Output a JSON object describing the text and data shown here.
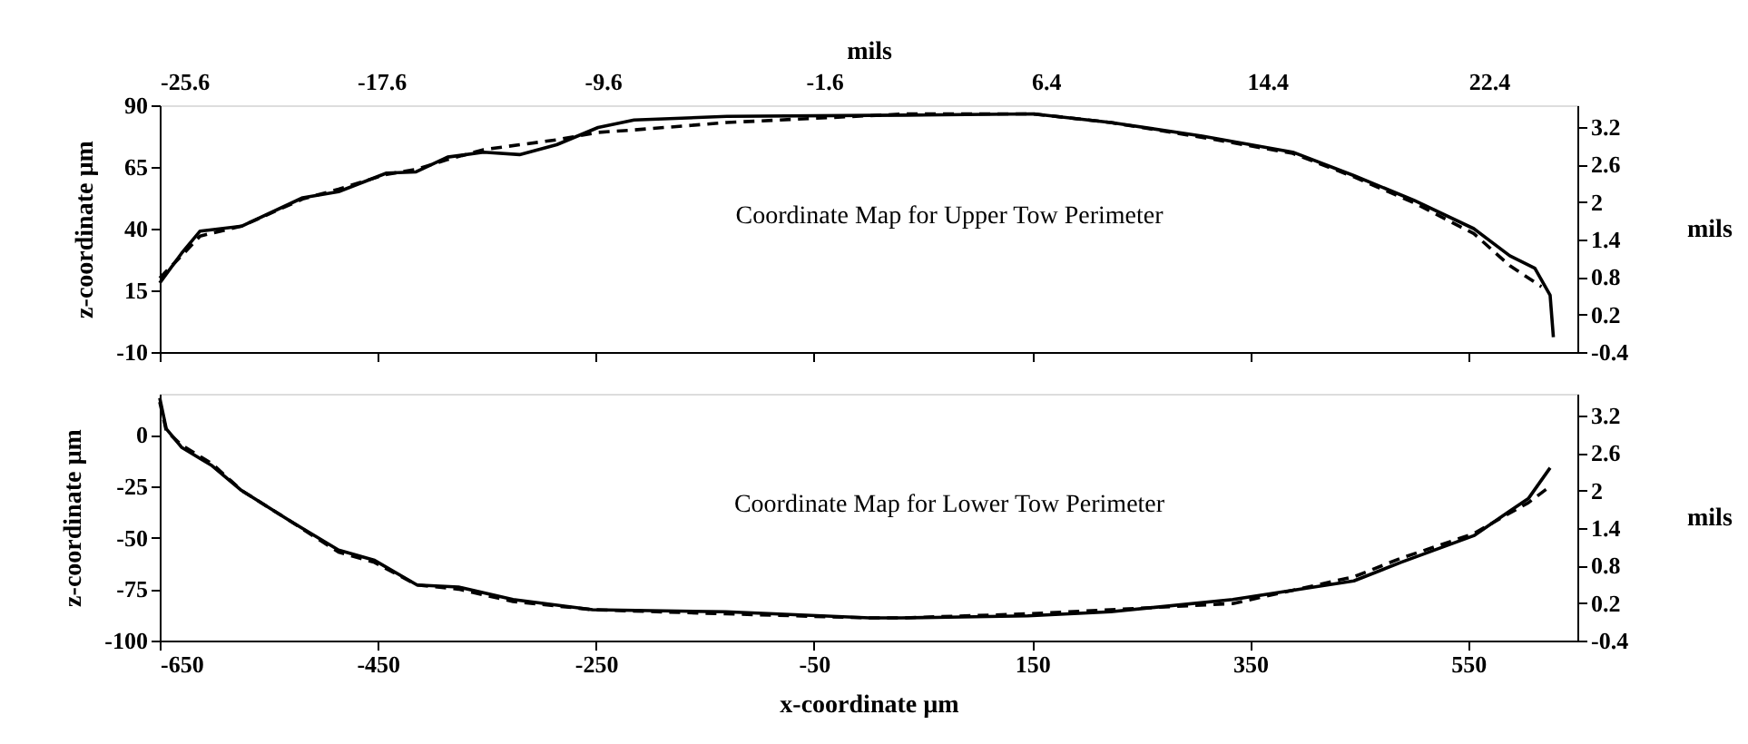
{
  "chart_data": [
    {
      "type": "line",
      "x2label": "mils",
      "ylabel": "z-coordinate µm",
      "y2label": "mils",
      "xlim": [
        -650,
        650
      ],
      "xticks": [
        -650,
        -450,
        -250,
        -50,
        150,
        350,
        550
      ],
      "x2lim": [
        -25.6,
        25.6
      ],
      "x2ticks": [
        -25.6,
        -17.6,
        -9.6,
        -1.6,
        6.4,
        14.4,
        22.4
      ],
      "ylim": [
        -10,
        90
      ],
      "yticks": [
        -10,
        15,
        40,
        65,
        90
      ],
      "y2lim": [
        -0.4,
        3.55
      ],
      "y2ticks": [
        -0.4,
        0.2,
        0.8,
        1.4,
        2,
        2.6,
        3.2
      ],
      "tick_labels": "y",
      "grid": false,
      "marker": "none",
      "annotations": [
        "Coordinate Map for Upper Tow Perimeter"
      ],
      "series": [
        {
          "color": "#000000",
          "line_style": "solid",
          "x": [
            -650,
            -630,
            -613,
            -575,
            -519,
            -486,
            -442,
            -415,
            -386,
            -353,
            -320,
            -286,
            -248,
            -215,
            -130,
            35,
            151,
            222,
            306,
            389,
            445,
            500,
            555,
            588,
            611,
            625,
            628
          ],
          "values": [
            18,
            30,
            39,
            41,
            52.5,
            55,
            62.5,
            63,
            69,
            71,
            70,
            74,
            81,
            84,
            85.5,
            86,
            86.5,
            83,
            77.5,
            71,
            61.5,
            51.5,
            40,
            29,
            24,
            13,
            -4
          ]
        },
        {
          "color": "#000000",
          "line_style": "dashed",
          "x": [
            -650,
            -630,
            -613,
            -575,
            -519,
            -486,
            -442,
            -415,
            -386,
            -353,
            -320,
            -286,
            -248,
            -215,
            -130,
            35,
            151,
            222,
            306,
            389,
            445,
            500,
            555,
            588,
            617
          ],
          "values": [
            20,
            29,
            37,
            41,
            52,
            56,
            62,
            64,
            68,
            72,
            74,
            76,
            79,
            80,
            83,
            86.5,
            86.5,
            83,
            77,
            70.5,
            61,
            50.5,
            38,
            25,
            16.5
          ]
        }
      ]
    },
    {
      "type": "line",
      "xlabel": "x-coordinate µm",
      "ylabel": "z-coordinate µm",
      "y2label": "mils",
      "xlim": [
        -650,
        650
      ],
      "xticks": [
        -650,
        -450,
        -250,
        -50,
        150,
        350,
        550
      ],
      "ylim": [
        -100,
        20
      ],
      "yticks": [
        -100,
        -75,
        -50,
        -25,
        0
      ],
      "y2lim": [
        -0.4,
        3.55
      ],
      "y2ticks": [
        -0.4,
        0.2,
        0.8,
        1.4,
        2,
        2.6,
        3.2
      ],
      "grid": false,
      "marker": "none",
      "annotations": [
        "Coordinate Map for Lower Tow Perimeter"
      ],
      "series": [
        {
          "color": "#000000",
          "line_style": "solid",
          "x": [
            -650,
            -644,
            -630,
            -602,
            -575,
            -530,
            -486,
            -453,
            -414,
            -376,
            -326,
            -253,
            -131,
            1,
            30,
            146,
            222,
            334,
            445,
            488,
            555,
            588,
            605,
            625
          ],
          "values": [
            18,
            3,
            -6,
            -15,
            -27,
            -42,
            -56,
            -61,
            -73,
            -74,
            -80,
            -85,
            -86,
            -89,
            -89,
            -88,
            -86,
            -80,
            -71,
            -62,
            -49,
            -37,
            -31,
            -16
          ]
        },
        {
          "color": "#000000",
          "line_style": "dashed",
          "x": [
            -650,
            -644,
            -630,
            -602,
            -575,
            -530,
            -486,
            -453,
            -414,
            -376,
            -326,
            -253,
            -131,
            1,
            30,
            146,
            222,
            334,
            445,
            488,
            555,
            588,
            605,
            625
          ],
          "values": [
            16,
            2,
            -5,
            -14,
            -27,
            -42,
            -57,
            -62,
            -73,
            -75,
            -81,
            -85,
            -87,
            -89,
            -89,
            -87,
            -85,
            -82,
            -69,
            -60,
            -48,
            -38,
            -33,
            -25
          ]
        }
      ]
    }
  ]
}
